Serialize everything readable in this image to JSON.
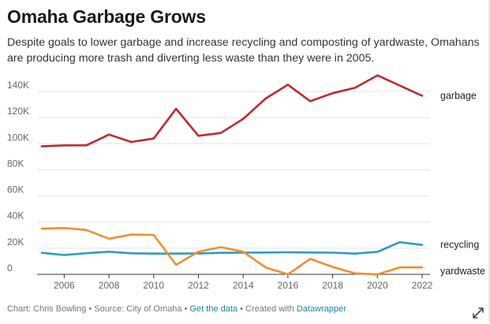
{
  "header": {
    "title": "Omaha Garbage Grows",
    "subtitle": "Despite goals to lower garbage and increase recycling and composting of yardwaste, Omahans are producing more trash and diverting less waste than they were in 2005."
  },
  "footer": {
    "chart_credit": "Chart: Chris Bowling",
    "separator": " • ",
    "source": "Source: City of Omaha",
    "get_data": "Get the data",
    "created_with": "Created with ",
    "tool": "Datawrapper",
    "expand_icon": "expand-arrows-icon"
  },
  "chart_data": {
    "type": "line",
    "title": "Omaha Garbage Grows",
    "xlabel": "",
    "ylabel": "",
    "x": [
      2005,
      2006,
      2007,
      2008,
      2009,
      2010,
      2011,
      2012,
      2013,
      2014,
      2015,
      2016,
      2017,
      2018,
      2019,
      2020,
      2021,
      2022
    ],
    "xlim": [
      2005,
      2022
    ],
    "ylim": [
      0,
      140000
    ],
    "x_ticks": [
      2006,
      2008,
      2010,
      2012,
      2014,
      2016,
      2018,
      2020,
      2022
    ],
    "y_ticks": [
      {
        "value": 0,
        "label": "0"
      },
      {
        "value": 20000,
        "label": "20K"
      },
      {
        "value": 40000,
        "label": "40K"
      },
      {
        "value": 60000,
        "label": "60K"
      },
      {
        "value": 80000,
        "label": "80K"
      },
      {
        "value": 100000,
        "label": "100K"
      },
      {
        "value": 120000,
        "label": "120K"
      },
      {
        "value": 140000,
        "label": "140K"
      }
    ],
    "grid": true,
    "series": [
      {
        "name": "garbage",
        "color": "#c1272d",
        "values": [
          98000,
          98700,
          98800,
          107000,
          101300,
          104000,
          126700,
          106000,
          108200,
          119000,
          134500,
          145200,
          132500,
          138700,
          142800,
          152300,
          144500,
          136700
        ]
      },
      {
        "name": "recycling",
        "color": "#2b9bc7",
        "values": [
          16500,
          14800,
          16200,
          17300,
          16100,
          15900,
          15900,
          16000,
          16500,
          16600,
          16700,
          16900,
          16700,
          16600,
          15900,
          17200,
          24600,
          22500
        ]
      },
      {
        "name": "yardwaste",
        "color": "#f28e2b",
        "values": [
          35000,
          35500,
          33900,
          27300,
          30400,
          30200,
          7300,
          17300,
          20800,
          17300,
          5300,
          0,
          11800,
          5700,
          700,
          0,
          5300,
          5400
        ]
      }
    ]
  }
}
